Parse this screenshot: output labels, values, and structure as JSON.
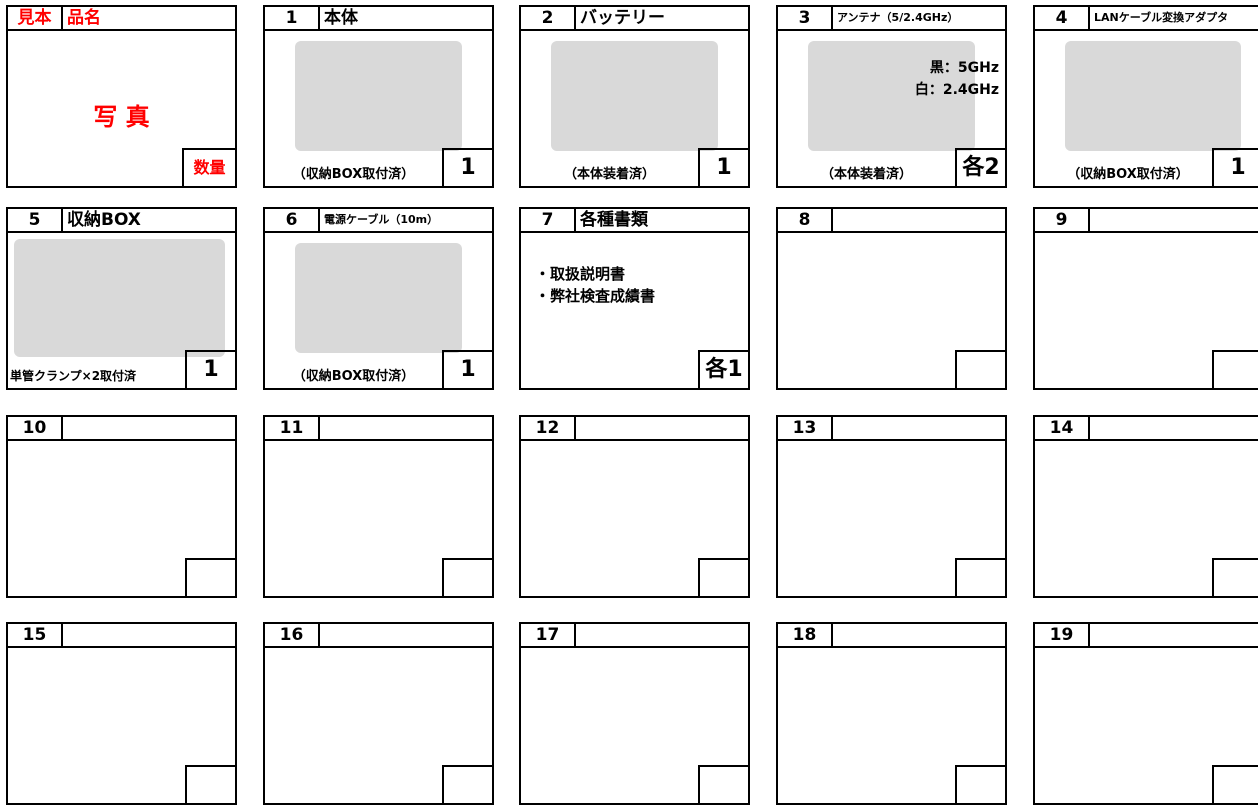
{
  "cells": [
    {
      "number": "見本",
      "name": "品名",
      "photo_label": "写 真",
      "quantity": "数量"
    },
    {
      "number": "1",
      "name": "本体",
      "note": "（収納BOX取付済）",
      "quantity": "1"
    },
    {
      "number": "2",
      "name": "バッテリー",
      "note": "（本体装着済）",
      "quantity": "1"
    },
    {
      "number": "3",
      "name": "アンテナ（5/2.4GHz）",
      "note": "（本体装着済）",
      "quantity": "各2",
      "lines": [
        "黒：5GHz",
        "白：2.4GHz"
      ]
    },
    {
      "number": "4",
      "name": "LANケーブル変換アダプタ",
      "note": "（収納BOX取付済）",
      "quantity": "1"
    },
    {
      "number": "5",
      "name": "収納BOX",
      "note": "単管クランプ×2取付済",
      "quantity": "1"
    },
    {
      "number": "6",
      "name": "電源ケーブル（10m）",
      "note": "（収納BOX取付済）",
      "quantity": "1"
    },
    {
      "number": "7",
      "name": "各種書類",
      "quantity": "各1",
      "lines": [
        "・取扱説明書",
        "・弊社検査成績書"
      ]
    },
    {
      "number": "8"
    },
    {
      "number": "9"
    },
    {
      "number": "10"
    },
    {
      "number": "11"
    },
    {
      "number": "12"
    },
    {
      "number": "13"
    },
    {
      "number": "14"
    },
    {
      "number": "15"
    },
    {
      "number": "16"
    },
    {
      "number": "17"
    },
    {
      "number": "18"
    },
    {
      "number": "19"
    }
  ]
}
